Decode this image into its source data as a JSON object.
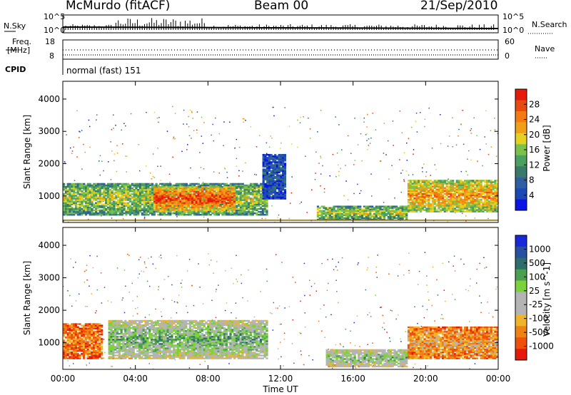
{
  "header": {
    "station": "McMurdo (fitACF)",
    "beam": "Beam 00",
    "date": "21/Sep/2010"
  },
  "top_panels": {
    "nsky_label": "N.Sky",
    "nsky_ticks": [
      "10^5",
      "10^0"
    ],
    "nsearch_label": "N.Search",
    "nsearch_ticks": [
      "10^5",
      "10^0"
    ],
    "freq_label_1": "Freq.",
    "freq_label_2": "[MHz]",
    "freq_ticks": [
      "18",
      "8"
    ],
    "nave_label": "Nave",
    "nave_ticks": [
      "60",
      "0"
    ],
    "cpid_label": "CPID",
    "cpid_value": "normal (fast) 151"
  },
  "colors": {
    "power_scale": [
      "#0a14e6",
      "#1a48b4",
      "#2f5fa0",
      "#3a7a6a",
      "#4aa060",
      "#7cc24a",
      "#e6d21e",
      "#f0a016",
      "#f47a14",
      "#e84a10",
      "#e61a0a"
    ],
    "velocity_scale": [
      "#e61a0a",
      "#f0500a",
      "#f08214",
      "#f0b428",
      "#b4b4b4",
      "#b4b4b4",
      "#7cd23c",
      "#4aa050",
      "#2e6e6a",
      "#2850a0",
      "#1a28dc"
    ]
  },
  "chart_data": [
    {
      "type": "heatmap",
      "panel": "power",
      "xlabel": "Time UT",
      "ylabel": "Slant Range [km]",
      "colorbar_label": "Power [dB]",
      "colorbar_ticks": [
        "28",
        "24",
        "20",
        "16",
        "12",
        "8",
        "4"
      ],
      "ylim": [
        180,
        4550
      ],
      "yticks": [
        1000,
        2000,
        3000,
        4000
      ],
      "xlim": [
        0,
        24
      ],
      "xticks": [
        "00:00",
        "04:00",
        "08:00",
        "12:00",
        "16:00",
        "20:00",
        "00:00"
      ],
      "regions": [
        {
          "t0": 0.0,
          "t1": 11.3,
          "r0": 400,
          "r1": 1400,
          "level": 0.55
        },
        {
          "t0": 5.0,
          "t1": 9.5,
          "r0": 500,
          "r1": 1300,
          "level": 0.9
        },
        {
          "t0": 11.0,
          "t1": 12.3,
          "r0": 900,
          "r1": 2300,
          "level": 0.2
        },
        {
          "t0": 14.0,
          "t1": 19.0,
          "r0": 250,
          "r1": 700,
          "level": 0.55
        },
        {
          "t0": 19.0,
          "t1": 24.0,
          "r0": 500,
          "r1": 1500,
          "level": 0.75
        }
      ]
    },
    {
      "type": "heatmap",
      "panel": "velocity",
      "xlabel": "Time UT",
      "ylabel": "Slant Range [km]",
      "colorbar_label": "Velocity [m s^-1]",
      "colorbar_ticks": [
        "1000",
        "500",
        "100",
        "25",
        "-25",
        "-100",
        "-500",
        "-1000"
      ],
      "ylim": [
        180,
        4550
      ],
      "yticks": [
        1000,
        2000,
        3000,
        4000
      ],
      "xlim": [
        0,
        24
      ],
      "xticks": [
        "00:00",
        "04:00",
        "08:00",
        "12:00",
        "16:00",
        "20:00",
        "00:00"
      ],
      "regions": [
        {
          "t0": 0.0,
          "t1": 2.2,
          "r0": 500,
          "r1": 1600,
          "level": 0.22
        },
        {
          "t0": 2.5,
          "t1": 11.3,
          "r0": 500,
          "r1": 1700,
          "level": 0.65
        },
        {
          "t0": 14.5,
          "t1": 19.0,
          "r0": 250,
          "r1": 800,
          "level": 0.6
        },
        {
          "t0": 19.0,
          "t1": 24.0,
          "r0": 500,
          "r1": 1500,
          "level": 0.3
        }
      ]
    }
  ]
}
